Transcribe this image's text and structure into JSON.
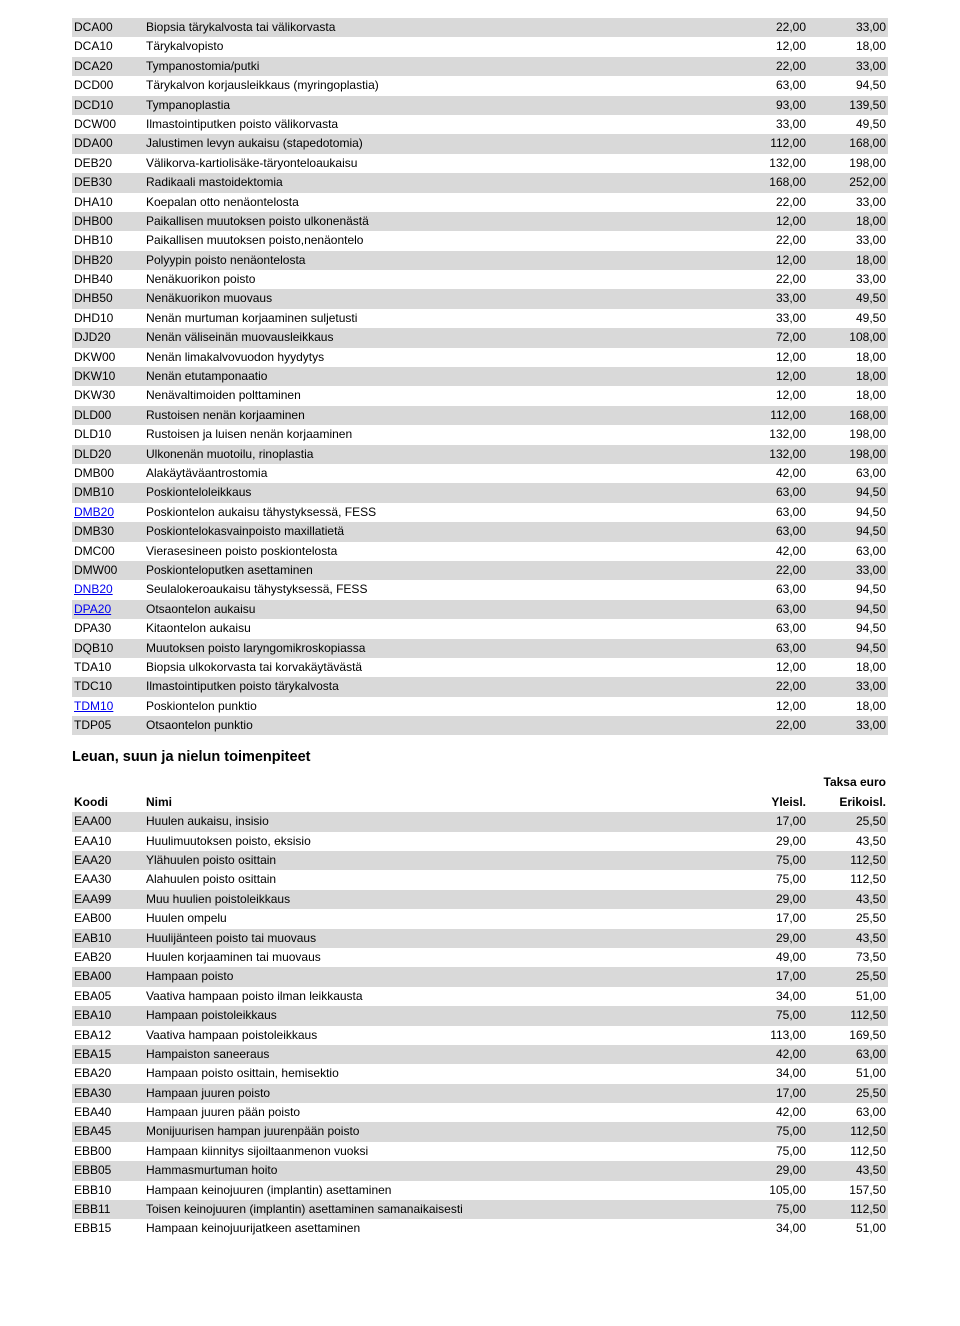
{
  "top_table": {
    "rows": [
      {
        "code": "DCA00",
        "name": "Biopsia tärykalvosta tai välikorvasta",
        "v1": "22,00",
        "v2": "33,00",
        "shaded": true,
        "link": false
      },
      {
        "code": "DCA10",
        "name": "Tärykalvopisto",
        "v1": "12,00",
        "v2": "18,00",
        "shaded": false,
        "link": false
      },
      {
        "code": "DCA20",
        "name": "Tympanostomia/putki",
        "v1": "22,00",
        "v2": "33,00",
        "shaded": true,
        "link": false
      },
      {
        "code": "DCD00",
        "name": "Tärykalvon korjausleikkaus (myringoplastia)",
        "v1": "63,00",
        "v2": "94,50",
        "shaded": false,
        "link": false
      },
      {
        "code": "DCD10",
        "name": "Tympanoplastia",
        "v1": "93,00",
        "v2": "139,50",
        "shaded": true,
        "link": false
      },
      {
        "code": "DCW00",
        "name": "Ilmastointiputken poisto välikorvasta",
        "v1": "33,00",
        "v2": "49,50",
        "shaded": false,
        "link": false
      },
      {
        "code": "DDA00",
        "name": "Jalustimen levyn aukaisu (stapedotomia)",
        "v1": "112,00",
        "v2": "168,00",
        "shaded": true,
        "link": false
      },
      {
        "code": "DEB20",
        "name": "Välikorva-kartiolisäke-täryonteloaukaisu",
        "v1": "132,00",
        "v2": "198,00",
        "shaded": false,
        "link": false
      },
      {
        "code": "DEB30",
        "name": "Radikaali mastoidektomia",
        "v1": "168,00",
        "v2": "252,00",
        "shaded": true,
        "link": false
      },
      {
        "code": "DHA10",
        "name": "Koepalan otto nenäontelosta",
        "v1": "22,00",
        "v2": "33,00",
        "shaded": false,
        "link": false
      },
      {
        "code": "DHB00",
        "name": "Paikallisen muutoksen poisto ulkonenästä",
        "v1": "12,00",
        "v2": "18,00",
        "shaded": true,
        "link": false
      },
      {
        "code": "DHB10",
        "name": "Paikallisen muutoksen poisto,nenäontelo",
        "v1": "22,00",
        "v2": "33,00",
        "shaded": false,
        "link": false
      },
      {
        "code": "DHB20",
        "name": "Polyypin poisto nenäontelosta",
        "v1": "12,00",
        "v2": "18,00",
        "shaded": true,
        "link": false
      },
      {
        "code": "DHB40",
        "name": "Nenäkuorikon poisto",
        "v1": "22,00",
        "v2": "33,00",
        "shaded": false,
        "link": false
      },
      {
        "code": "DHB50",
        "name": "Nenäkuorikon muovaus",
        "v1": "33,00",
        "v2": "49,50",
        "shaded": true,
        "link": false
      },
      {
        "code": "DHD10",
        "name": "Nenän murtuman korjaaminen suljetusti",
        "v1": "33,00",
        "v2": "49,50",
        "shaded": false,
        "link": false
      },
      {
        "code": "DJD20",
        "name": "Nenän väliseinän muovausleikkaus",
        "v1": "72,00",
        "v2": "108,00",
        "shaded": true,
        "link": false
      },
      {
        "code": "DKW00",
        "name": "Nenän limakalvovuodon hyydytys",
        "v1": "12,00",
        "v2": "18,00",
        "shaded": false,
        "link": false
      },
      {
        "code": "DKW10",
        "name": "Nenän etutamponaatio",
        "v1": "12,00",
        "v2": "18,00",
        "shaded": true,
        "link": false
      },
      {
        "code": "DKW30",
        "name": "Nenävaltimoiden polttaminen",
        "v1": "12,00",
        "v2": "18,00",
        "shaded": false,
        "link": false
      },
      {
        "code": "DLD00",
        "name": "Rustoisen nenän korjaaminen",
        "v1": "112,00",
        "v2": "168,00",
        "shaded": true,
        "link": false
      },
      {
        "code": "DLD10",
        "name": "Rustoisen ja luisen nenän korjaaminen",
        "v1": "132,00",
        "v2": "198,00",
        "shaded": false,
        "link": false
      },
      {
        "code": "DLD20",
        "name": "Ulkonenän muotoilu, rinoplastia",
        "v1": "132,00",
        "v2": "198,00",
        "shaded": true,
        "link": false
      },
      {
        "code": "DMB00",
        "name": "Alakäytäväantrostomia",
        "v1": "42,00",
        "v2": "63,00",
        "shaded": false,
        "link": false
      },
      {
        "code": "DMB10",
        "name": "Poskionteloleikkaus",
        "v1": "63,00",
        "v2": "94,50",
        "shaded": true,
        "link": false
      },
      {
        "code": "DMB20",
        "name": "Poskiontelon aukaisu tähystyksessä, FESS",
        "v1": "63,00",
        "v2": "94,50",
        "shaded": false,
        "link": true
      },
      {
        "code": "DMB30",
        "name": "Poskiontelokasvainpoisto maxillatietä",
        "v1": "63,00",
        "v2": "94,50",
        "shaded": true,
        "link": false
      },
      {
        "code": "DMC00",
        "name": "Vierasesineen poisto poskiontelosta",
        "v1": "42,00",
        "v2": "63,00",
        "shaded": false,
        "link": false
      },
      {
        "code": "DMW00",
        "name": "Poskionteloputken asettaminen",
        "v1": "22,00",
        "v2": "33,00",
        "shaded": true,
        "link": false
      },
      {
        "code": "DNB20",
        "name": "Seulalokeroaukaisu tähystyksessä, FESS",
        "v1": "63,00",
        "v2": "94,50",
        "shaded": false,
        "link": true
      },
      {
        "code": "DPA20",
        "name": "Otsaontelon aukaisu",
        "v1": "63,00",
        "v2": "94,50",
        "shaded": true,
        "link": true
      },
      {
        "code": "DPA30",
        "name": "Kitaontelon aukaisu",
        "v1": "63,00",
        "v2": "94,50",
        "shaded": false,
        "link": false
      },
      {
        "code": "DQB10",
        "name": "Muutoksen poisto laryngomikroskopiassa",
        "v1": "63,00",
        "v2": "94,50",
        "shaded": true,
        "link": false
      },
      {
        "code": "TDA10",
        "name": "Biopsia ulkokorvasta tai korvakäytävästä",
        "v1": "12,00",
        "v2": "18,00",
        "shaded": false,
        "link": false
      },
      {
        "code": "TDC10",
        "name": "Ilmastointiputken poisto tärykalvosta",
        "v1": "22,00",
        "v2": "33,00",
        "shaded": true,
        "link": false
      },
      {
        "code": "TDM10",
        "name": "Poskiontelon punktio",
        "v1": "12,00",
        "v2": "18,00",
        "shaded": false,
        "link": true
      },
      {
        "code": "TDP05",
        "name": "Otsaontelon punktio",
        "v1": "22,00",
        "v2": "33,00",
        "shaded": true,
        "link": false
      }
    ]
  },
  "section_title": "Leuan, suun ja nielun toimenpiteet",
  "header": {
    "taksa": "Taksa euro",
    "koodi": "Koodi",
    "nimi": "Nimi",
    "yleisl": "Yleisl.",
    "erikoisl": "Erikoisl."
  },
  "bottom_table": {
    "rows": [
      {
        "code": "EAA00",
        "name": "Huulen aukaisu, insisio",
        "v1": "17,00",
        "v2": "25,50",
        "shaded": true,
        "link": false
      },
      {
        "code": "EAA10",
        "name": "Huulimuutoksen poisto, eksisio",
        "v1": "29,00",
        "v2": "43,50",
        "shaded": false,
        "link": false
      },
      {
        "code": "EAA20",
        "name": "Ylähuulen poisto osittain",
        "v1": "75,00",
        "v2": "112,50",
        "shaded": true,
        "link": false
      },
      {
        "code": "EAA30",
        "name": "Alahuulen poisto osittain",
        "v1": "75,00",
        "v2": "112,50",
        "shaded": false,
        "link": false
      },
      {
        "code": "EAA99",
        "name": "Muu huulien poistoleikkaus",
        "v1": "29,00",
        "v2": "43,50",
        "shaded": true,
        "link": false
      },
      {
        "code": "EAB00",
        "name": "Huulen ompelu",
        "v1": "17,00",
        "v2": "25,50",
        "shaded": false,
        "link": false
      },
      {
        "code": "EAB10",
        "name": "Huulijänteen poisto tai muovaus",
        "v1": "29,00",
        "v2": "43,50",
        "shaded": true,
        "link": false
      },
      {
        "code": "EAB20",
        "name": "Huulen korjaaminen tai muovaus",
        "v1": "49,00",
        "v2": "73,50",
        "shaded": false,
        "link": false
      },
      {
        "code": "EBA00",
        "name": "Hampaan poisto",
        "v1": "17,00",
        "v2": "25,50",
        "shaded": true,
        "link": false
      },
      {
        "code": "EBA05",
        "name": "Vaativa hampaan poisto ilman leikkausta",
        "v1": "34,00",
        "v2": "51,00",
        "shaded": false,
        "link": false
      },
      {
        "code": "EBA10",
        "name": "Hampaan poistoleikkaus",
        "v1": "75,00",
        "v2": "112,50",
        "shaded": true,
        "link": false
      },
      {
        "code": "EBA12",
        "name": "Vaativa hampaan poistoleikkaus",
        "v1": "113,00",
        "v2": "169,50",
        "shaded": false,
        "link": false
      },
      {
        "code": "EBA15",
        "name": "Hampaiston saneeraus",
        "v1": "42,00",
        "v2": "63,00",
        "shaded": true,
        "link": false
      },
      {
        "code": "EBA20",
        "name": "Hampaan poisto osittain, hemisektio",
        "v1": "34,00",
        "v2": "51,00",
        "shaded": false,
        "link": false
      },
      {
        "code": "EBA30",
        "name": "Hampaan juuren poisto",
        "v1": "17,00",
        "v2": "25,50",
        "shaded": true,
        "link": false
      },
      {
        "code": "EBA40",
        "name": "Hampaan juuren pään poisto",
        "v1": "42,00",
        "v2": "63,00",
        "shaded": false,
        "link": false
      },
      {
        "code": "EBA45",
        "name": "Monijuurisen hampan juurenpään poisto",
        "v1": "75,00",
        "v2": "112,50",
        "shaded": true,
        "link": false
      },
      {
        "code": "EBB00",
        "name": "Hampaan kiinnitys sijoiltaanmenon vuoksi",
        "v1": "75,00",
        "v2": "112,50",
        "shaded": false,
        "link": false
      },
      {
        "code": "EBB05",
        "name": "Hammasmurtuman hoito",
        "v1": "29,00",
        "v2": "43,50",
        "shaded": true,
        "link": false
      },
      {
        "code": "EBB10",
        "name": "Hampaan keinojuuren (implantin) asettaminen",
        "v1": "105,00",
        "v2": "157,50",
        "shaded": false,
        "link": false
      },
      {
        "code": "EBB11",
        "name": "Toisen keinojuuren (implantin) asettaminen samanaikaisesti",
        "v1": "75,00",
        "v2": "112,50",
        "shaded": true,
        "link": false
      },
      {
        "code": "EBB15",
        "name": "Hampaan keinojuurijatkeen asettaminen",
        "v1": "34,00",
        "v2": "51,00",
        "shaded": false,
        "link": false
      }
    ]
  }
}
